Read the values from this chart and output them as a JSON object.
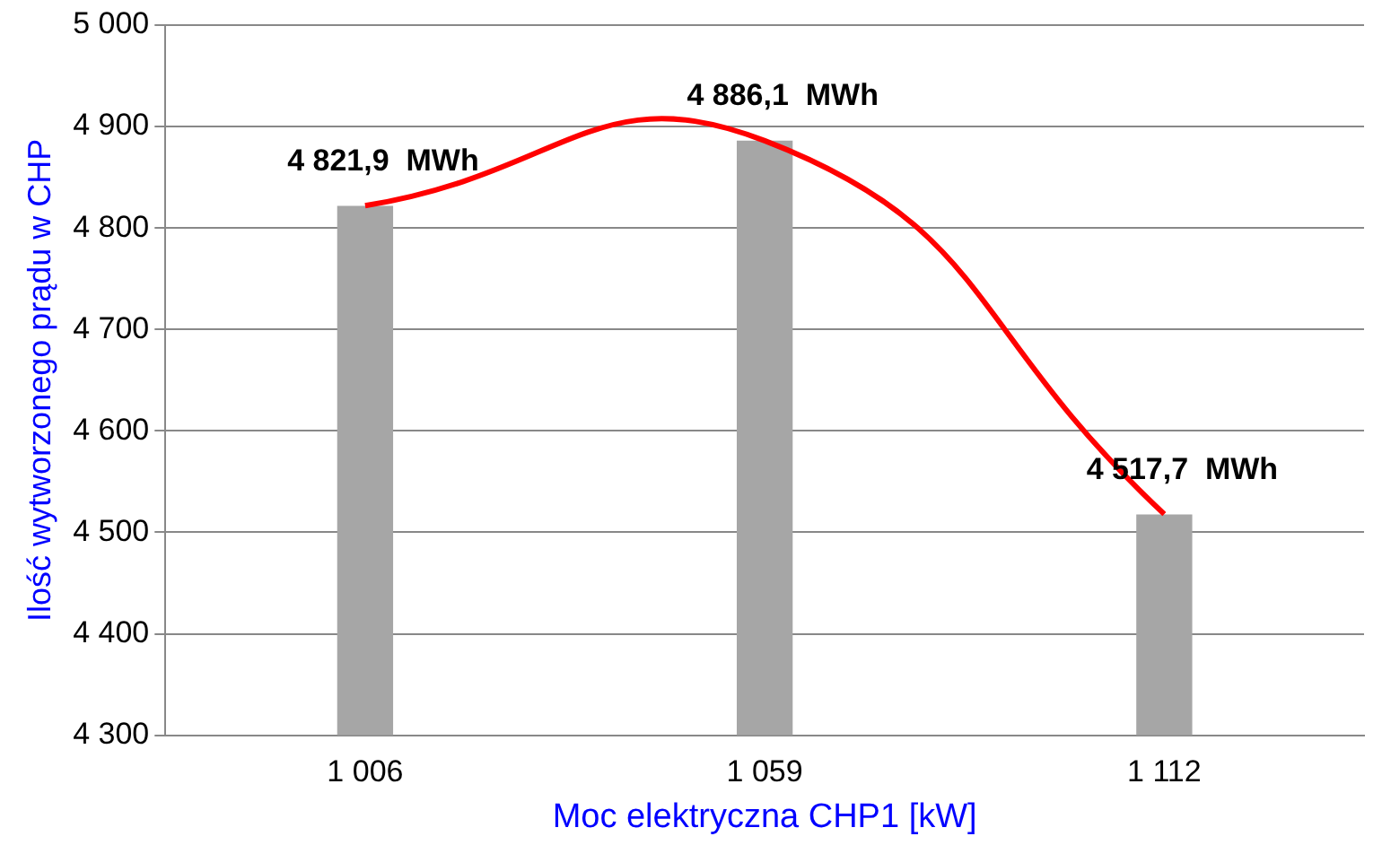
{
  "chart_data": {
    "type": "bar",
    "xlabel": "Moc elektryczna CHP1 [kW]",
    "ylabel": "Ilość wytworzonego prądu w CHP",
    "categories": [
      "1 006",
      "1 059",
      "1 112"
    ],
    "series": [
      {
        "color": "#a6a6a6",
        "values": [
          4821.9,
          4886.1,
          4517.7
        ],
        "value_labels": [
          "4 821,9  MWh",
          "4 886,1  MWh",
          "4 517,7  MWh"
        ]
      },
      {
        "type": "line",
        "color": "#ff0000",
        "values": [
          4822,
          4886,
          4518
        ]
      }
    ],
    "ylim": [
      4300,
      5000
    ],
    "yticks": [
      {
        "value": 4300,
        "label": "4 300"
      },
      {
        "value": 4400,
        "label": "4 400"
      },
      {
        "value": 4500,
        "label": "4 500"
      },
      {
        "value": 4600,
        "label": "4 600"
      },
      {
        "value": 4700,
        "label": "4 700"
      },
      {
        "value": 4800,
        "label": "4 800"
      },
      {
        "value": 4900,
        "label": "4 900"
      },
      {
        "value": 5000,
        "label": "5 000"
      }
    ],
    "grid": "y",
    "legend": false,
    "marker": "none"
  }
}
